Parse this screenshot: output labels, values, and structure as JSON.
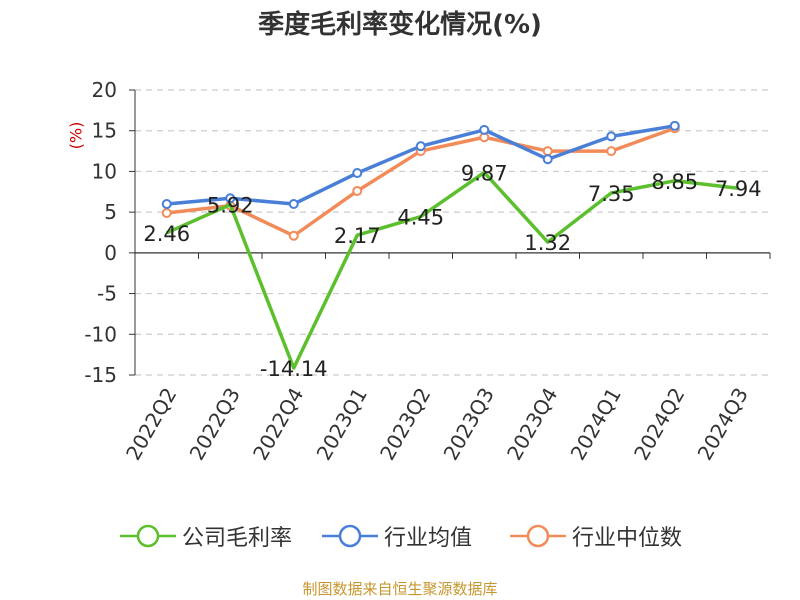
{
  "chart_data": {
    "type": "line",
    "title": "季度毛利率变化情况(%)",
    "ylabel": "(%)",
    "categories": [
      "2022Q2",
      "2022Q3",
      "2022Q4",
      "2023Q1",
      "2023Q2",
      "2023Q3",
      "2023Q4",
      "2024Q1",
      "2024Q2",
      "2024Q3"
    ],
    "ylim": [
      -15,
      20
    ],
    "yticks": [
      "20",
      "15",
      "10",
      "5",
      "0",
      "-5",
      "-10",
      "-15"
    ],
    "grid": true,
    "legend_position": "bottom",
    "series": [
      {
        "name": "公司毛利率",
        "color": "#5cc02e",
        "values": [
          2.46,
          5.92,
          -14.14,
          2.17,
          4.45,
          9.87,
          1.32,
          7.35,
          8.85,
          7.94
        ],
        "labels": [
          "2.46",
          "5.92",
          "-14.14",
          "2.17",
          "4.45",
          "9.87",
          "1.32",
          "7.35",
          "8.85",
          "7.94"
        ]
      },
      {
        "name": "行业均值",
        "color": "#4a7fd8",
        "values": [
          6.0,
          6.7,
          6.0,
          9.8,
          13.1,
          15.1,
          11.5,
          14.3,
          15.6,
          null
        ]
      },
      {
        "name": "行业中位数",
        "color": "#f28b5a",
        "values": [
          4.9,
          5.8,
          2.1,
          7.6,
          12.5,
          14.2,
          12.5,
          12.5,
          15.3,
          null
        ]
      }
    ]
  },
  "source_note": "制图数据来自恒生聚源数据库"
}
